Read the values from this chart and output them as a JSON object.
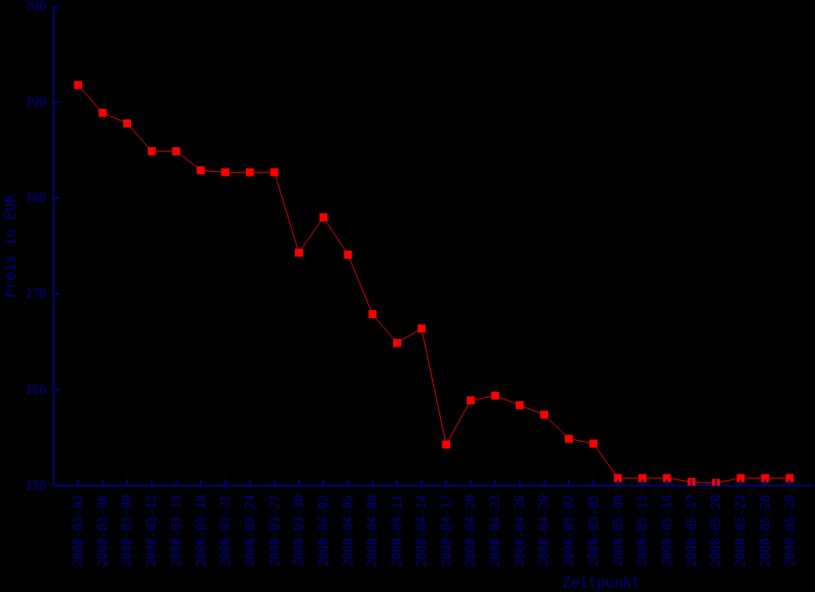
{
  "chart_data": {
    "type": "line",
    "xlabel": "Zeitpunkt",
    "ylabel": "Preis in EUR",
    "categories": [
      "2008-03-03",
      "2008-03-06",
      "2008-03-09",
      "2008-03-12",
      "2008-03-15",
      "2008-03-18",
      "2008-03-21",
      "2008-03-24",
      "2008-03-27",
      "2008-03-30",
      "2008-04-02",
      "2008-04-05",
      "2008-04-08",
      "2008-04-11",
      "2008-04-14",
      "2008-04-17",
      "2008-04-20",
      "2008-04-23",
      "2008-04-26",
      "2008-04-29",
      "2008-05-02",
      "2008-05-05",
      "2008-05-08",
      "2008-05-11",
      "2008-05-14",
      "2008-05-17",
      "2008-05-20",
      "2008-05-23",
      "2008-05-26",
      "2008-05-29"
    ],
    "series": [
      {
        "color": "#ff0000",
        "values": [
          191.8,
          188.9,
          187.8,
          184.9,
          184.9,
          182.9,
          182.7,
          182.7,
          182.7,
          174.3,
          178.0,
          174.1,
          167.9,
          164.9,
          166.4,
          154.3,
          158.9,
          159.4,
          158.4,
          157.4,
          154.9,
          154.4,
          150.8,
          150.8,
          150.8,
          150.4,
          150.3,
          150.8,
          150.8,
          150.8
        ]
      }
    ],
    "ylim": [
      150,
      200
    ],
    "yticks": [
      150,
      160,
      170,
      180,
      190,
      200
    ],
    "marker": "square",
    "line_style": "solid"
  }
}
